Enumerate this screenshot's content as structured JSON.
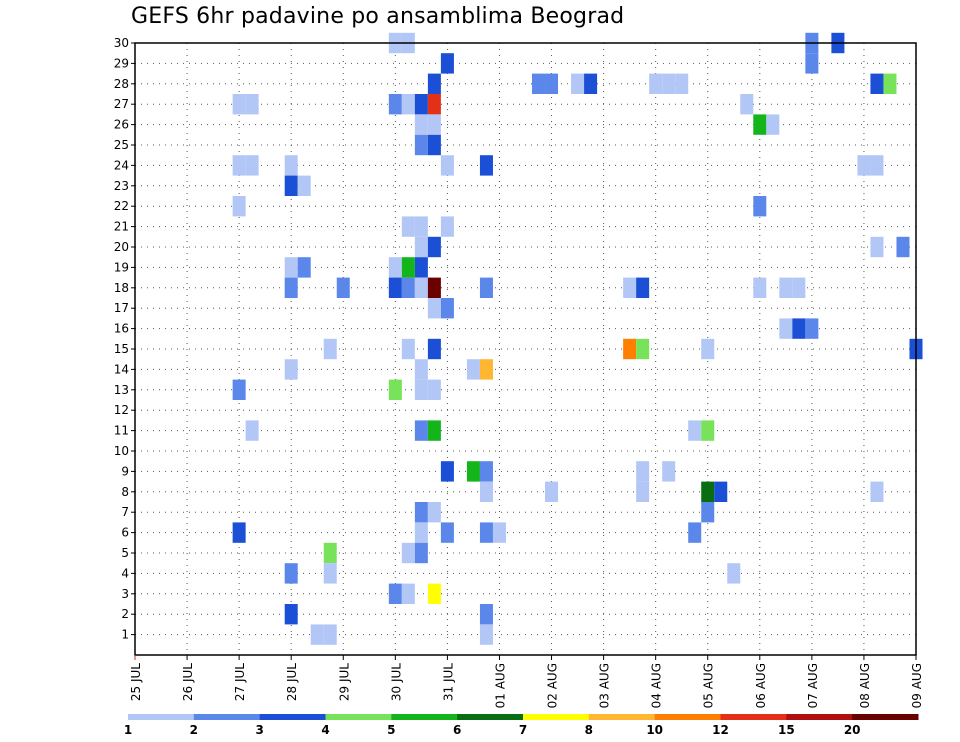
{
  "chart_data": {
    "type": "heatmap",
    "title": "GEFS 6hr padavine po ansamblima Beograd",
    "xlabel": "",
    "ylabel": "",
    "x_tick_labels": [
      "25 JUL",
      "26 JUL",
      "27 JUL",
      "28 JUL",
      "29 JUL",
      "30 JUL",
      "31 JUL",
      "01 AUG",
      "02 AUG",
      "03 AUG",
      "04 AUG",
      "05 AUG",
      "06 AUG",
      "07 AUG",
      "08 AUG",
      "09 AUG"
    ],
    "x_range_days": [
      0,
      15
    ],
    "x_step_hours": 6,
    "y_tick_labels": [
      "1",
      "2",
      "3",
      "4",
      "5",
      "6",
      "7",
      "8",
      "9",
      "10",
      "11",
      "12",
      "13",
      "14",
      "15",
      "16",
      "17",
      "18",
      "19",
      "20",
      "21",
      "22",
      "23",
      "24",
      "25",
      "26",
      "27",
      "28",
      "29",
      "30"
    ],
    "y_range": [
      0,
      30
    ],
    "grid": true,
    "levels": [
      "1",
      "2",
      "3",
      "4",
      "5",
      "6",
      "7",
      "8",
      "10",
      "12",
      "15",
      "20"
    ],
    "level_colors": [
      "#b3c7f7",
      "#5b87eb",
      "#1a4fd6",
      "#78e35a",
      "#13b51b",
      "#0a6d12",
      "#ffff00",
      "#ffb732",
      "#ff8000",
      "#e43016",
      "#b01010",
      "#6b0000"
    ],
    "points_note": "each point: [member, x_days_from_25JUL, level_index]",
    "points": [
      [
        30,
        5.0,
        0
      ],
      [
        30,
        5.25,
        0
      ],
      [
        30,
        13.0,
        1
      ],
      [
        30,
        13.5,
        2
      ],
      [
        29,
        6.0,
        2
      ],
      [
        29,
        13.0,
        1
      ],
      [
        28,
        5.75,
        2
      ],
      [
        28,
        7.75,
        1
      ],
      [
        28,
        8.0,
        1
      ],
      [
        28,
        8.5,
        0
      ],
      [
        28,
        8.75,
        2
      ],
      [
        28,
        10.0,
        0
      ],
      [
        28,
        10.25,
        0
      ],
      [
        28,
        10.5,
        0
      ],
      [
        28,
        14.25,
        2
      ],
      [
        28,
        14.5,
        3
      ],
      [
        27,
        2.0,
        0
      ],
      [
        27,
        2.25,
        0
      ],
      [
        27,
        5.0,
        1
      ],
      [
        27,
        5.25,
        0
      ],
      [
        27,
        5.5,
        2
      ],
      [
        27,
        5.75,
        9
      ],
      [
        27,
        11.75,
        0
      ],
      [
        26,
        5.5,
        0
      ],
      [
        26,
        5.75,
        0
      ],
      [
        26,
        12.0,
        4
      ],
      [
        26,
        12.25,
        0
      ],
      [
        25,
        5.5,
        1
      ],
      [
        25,
        5.75,
        2
      ],
      [
        24,
        2.0,
        0
      ],
      [
        24,
        2.25,
        0
      ],
      [
        24,
        3.0,
        0
      ],
      [
        24,
        6.0,
        0
      ],
      [
        24,
        6.75,
        2
      ],
      [
        24,
        14.0,
        0
      ],
      [
        24,
        14.25,
        0
      ],
      [
        23,
        3.0,
        2
      ],
      [
        23,
        3.25,
        0
      ],
      [
        22,
        2.0,
        0
      ],
      [
        22,
        12.0,
        1
      ],
      [
        21,
        5.25,
        0
      ],
      [
        21,
        5.5,
        0
      ],
      [
        21,
        6.0,
        0
      ],
      [
        20,
        5.5,
        0
      ],
      [
        20,
        5.75,
        2
      ],
      [
        20,
        14.25,
        0
      ],
      [
        20,
        14.75,
        1
      ],
      [
        19,
        3.0,
        0
      ],
      [
        19,
        3.25,
        1
      ],
      [
        19,
        5.0,
        0
      ],
      [
        19,
        5.25,
        4
      ],
      [
        19,
        5.5,
        2
      ],
      [
        18,
        3.0,
        1
      ],
      [
        18,
        4.0,
        1
      ],
      [
        18,
        5.0,
        2
      ],
      [
        18,
        5.25,
        1
      ],
      [
        18,
        5.5,
        0
      ],
      [
        18,
        5.75,
        11
      ],
      [
        18,
        6.75,
        1
      ],
      [
        18,
        9.5,
        0
      ],
      [
        18,
        9.75,
        2
      ],
      [
        18,
        12.0,
        0
      ],
      [
        18,
        12.5,
        0
      ],
      [
        18,
        12.75,
        0
      ],
      [
        17,
        5.75,
        0
      ],
      [
        17,
        6.0,
        1
      ],
      [
        16,
        12.5,
        0
      ],
      [
        16,
        12.75,
        2
      ],
      [
        16,
        13.0,
        1
      ],
      [
        15,
        5.75,
        2
      ],
      [
        15,
        3.75,
        0
      ],
      [
        15,
        5.25,
        0
      ],
      [
        15,
        9.5,
        8
      ],
      [
        15,
        9.75,
        3
      ],
      [
        15,
        11.0,
        0
      ],
      [
        15,
        15.0,
        2
      ],
      [
        14,
        3.0,
        0
      ],
      [
        14,
        5.5,
        0
      ],
      [
        14,
        6.5,
        0
      ],
      [
        14,
        6.75,
        7
      ],
      [
        13,
        2.0,
        1
      ],
      [
        13,
        5.0,
        3
      ],
      [
        13,
        5.5,
        0
      ],
      [
        13,
        5.75,
        0
      ],
      [
        11,
        2.25,
        0
      ],
      [
        11,
        5.5,
        1
      ],
      [
        11,
        5.75,
        4
      ],
      [
        11,
        10.75,
        0
      ],
      [
        11,
        11.0,
        3
      ],
      [
        9,
        6.0,
        2
      ],
      [
        9,
        6.5,
        4
      ],
      [
        9,
        6.75,
        1
      ],
      [
        9,
        9.75,
        0
      ],
      [
        9,
        10.25,
        0
      ],
      [
        8,
        6.75,
        0
      ],
      [
        8,
        8.0,
        0
      ],
      [
        8,
        9.75,
        0
      ],
      [
        8,
        11.0,
        5
      ],
      [
        8,
        11.25,
        2
      ],
      [
        8,
        14.25,
        0
      ],
      [
        7,
        5.5,
        1
      ],
      [
        7,
        5.75,
        0
      ],
      [
        7,
        11.0,
        1
      ],
      [
        6,
        5.5,
        0
      ],
      [
        6,
        6.0,
        1
      ],
      [
        6,
        2.0,
        2
      ],
      [
        6,
        6.75,
        1
      ],
      [
        6,
        7.0,
        0
      ],
      [
        6,
        10.75,
        1
      ],
      [
        5,
        3.75,
        3
      ],
      [
        5,
        5.25,
        0
      ],
      [
        5,
        5.5,
        1
      ],
      [
        4,
        3.0,
        1
      ],
      [
        4,
        3.75,
        0
      ],
      [
        4,
        11.5,
        0
      ],
      [
        3,
        5.0,
        1
      ],
      [
        3,
        5.25,
        0
      ],
      [
        3,
        5.75,
        6
      ],
      [
        2,
        3.0,
        2
      ],
      [
        2,
        6.75,
        1
      ],
      [
        1,
        3.5,
        0
      ],
      [
        1,
        3.75,
        0
      ],
      [
        1,
        6.75,
        0
      ]
    ]
  }
}
